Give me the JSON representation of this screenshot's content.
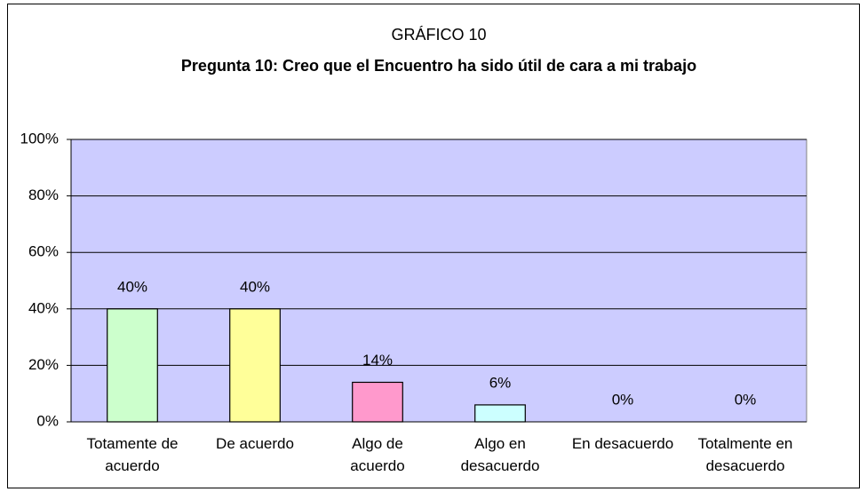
{
  "chart_data": {
    "type": "bar",
    "title": "GRÁFICO 10",
    "subtitle": "Pregunta 10: Creo que el Encuentro ha sido útil de cara a mi trabajo",
    "categories": [
      "Totamente de acuerdo",
      "De acuerdo",
      "Algo de acuerdo",
      "Algo en desacuerdo",
      "En desacuerdo",
      "Totalmente en desacuerdo"
    ],
    "values": [
      40,
      40,
      14,
      6,
      0,
      0
    ],
    "value_labels": [
      "40%",
      "40%",
      "14%",
      "6%",
      "0%",
      "0%"
    ],
    "colors": [
      "#ccffcc",
      "#ffff99",
      "#ff99cc",
      "#ccffff",
      "#ccffff",
      "#ccffff"
    ],
    "ylim": [
      0,
      100
    ],
    "yticks": [
      {
        "value": 0,
        "label": "0%"
      },
      {
        "value": 20,
        "label": "20%"
      },
      {
        "value": 40,
        "label": "40%"
      },
      {
        "value": 60,
        "label": "60%"
      },
      {
        "value": 80,
        "label": "80%"
      },
      {
        "value": 100,
        "label": "100%"
      }
    ],
    "grid": true,
    "plot_background": "#ccccff"
  }
}
